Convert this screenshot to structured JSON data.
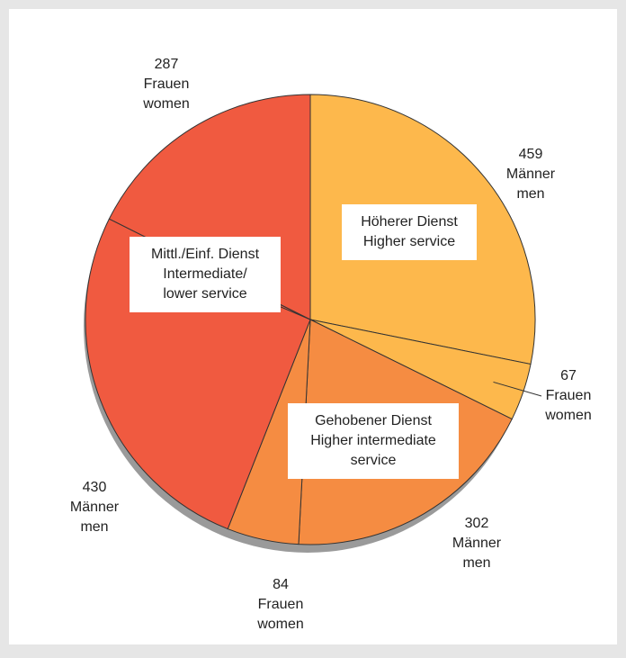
{
  "chart_data": {
    "type": "pie",
    "groups": [
      {
        "lines": [
          "Höherer Dienst",
          "Higher service"
        ],
        "color": "#fdb84c",
        "slices": [
          {
            "value": 459,
            "lines": [
              "Männer",
              "men"
            ]
          },
          {
            "value": 67,
            "lines": [
              "Frauen",
              "women"
            ]
          }
        ]
      },
      {
        "lines": [
          "Gehobener Dienst",
          "Higher intermediate",
          "service"
        ],
        "color": "#f58c42",
        "slices": [
          {
            "value": 302,
            "lines": [
              "Männer",
              "men"
            ]
          },
          {
            "value": 84,
            "lines": [
              "Frauen",
              "women"
            ]
          }
        ]
      },
      {
        "lines": [
          "Mittl./Einf. Dienst",
          "Intermediate/",
          "lower service"
        ],
        "color": "#f05a40",
        "slices": [
          {
            "value": 430,
            "lines": [
              "Männer",
              "men"
            ]
          },
          {
            "value": 287,
            "lines": [
              "Frauen",
              "women"
            ]
          }
        ]
      }
    ]
  }
}
